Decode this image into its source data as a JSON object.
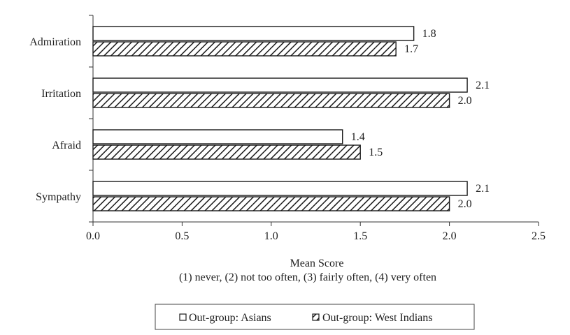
{
  "chart_data": {
    "type": "bar",
    "orientation": "horizontal",
    "categories": [
      "Admiration",
      "Irritation",
      "Afraid",
      "Sympathy"
    ],
    "series": [
      {
        "name": "Out-group: Asians",
        "values": [
          1.8,
          2.1,
          1.4,
          2.1
        ],
        "data_labels": [
          "1.8",
          "2.1",
          "1.4",
          "2.1"
        ],
        "fill": "#ffffff",
        "pattern": "none"
      },
      {
        "name": "Out-group: West Indians",
        "values": [
          1.7,
          2.0,
          1.5,
          2.0
        ],
        "data_labels": [
          "1.7",
          "2.0",
          "1.5",
          "2.0"
        ],
        "fill": "#ffffff",
        "pattern": "diagonal-hatch"
      }
    ],
    "xlabel": "Mean Score",
    "xlabel_note": "(1) never, (2) not too often, (3) fairly often, (4) very often",
    "xlim": [
      0,
      2.5
    ],
    "x_ticks": [
      0.0,
      0.5,
      1.0,
      1.5,
      2.0,
      2.5
    ],
    "x_tick_labels": [
      "0.0",
      "0.5",
      "1.0",
      "1.5",
      "2.0",
      "2.5"
    ],
    "grid": false,
    "legend_position": "bottom-center",
    "colors": {
      "bar_stroke": "#1a1a1a",
      "hatch": "#1a1a1a",
      "axis": "#333333",
      "text": "#222222"
    }
  }
}
